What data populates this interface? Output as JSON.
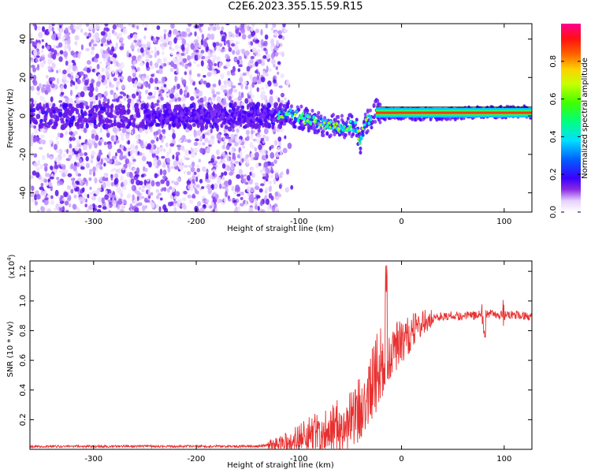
{
  "title": "C2E6.2023.355.15.59.R15",
  "chart_data": [
    {
      "type": "heatmap",
      "xlabel": "Height of straight line (km)",
      "ylabel": "Frequency (Hz)",
      "xlim": [
        -362,
        127
      ],
      "ylim": [
        -50,
        48
      ],
      "xticks": [
        -300,
        -200,
        -100,
        0,
        100
      ],
      "yticks": [
        -40,
        -20,
        0,
        20,
        40
      ],
      "xtick_labels": [
        "-300",
        "-200",
        "-100",
        "0",
        "100"
      ],
      "ytick_labels": [
        "-40",
        "-20",
        "0",
        "20",
        "40"
      ],
      "colorbar": {
        "label": "Normalized spectral amplitude",
        "range": [
          0.0,
          1.0
        ],
        "ticks": [
          0.0,
          0.2,
          0.4,
          0.6,
          0.8
        ],
        "tick_labels": [
          "0.0",
          "0.2",
          "0.4",
          "0.6",
          "0.8"
        ]
      },
      "features": {
        "noise_region_x": [
          -362,
          -120
        ],
        "trace_x": [
          -250,
          127
        ],
        "trace_center_hz": [
          [
            -250,
            0
          ],
          [
            -150,
            0
          ],
          [
            -110,
            1
          ],
          [
            -90,
            -2
          ],
          [
            -80,
            -4
          ],
          [
            -60,
            -6
          ],
          [
            -45,
            -5
          ],
          [
            -40,
            -14
          ],
          [
            -35,
            -3
          ],
          [
            -30,
            -2
          ],
          [
            -25,
            3
          ],
          [
            -20,
            1
          ],
          [
            0,
            1
          ],
          [
            50,
            1
          ],
          [
            80,
            2
          ],
          [
            127,
            2
          ]
        ]
      }
    },
    {
      "type": "line",
      "xlabel": "Height of straight line (km)",
      "ylabel": "SNR (10 * v/v)",
      "y_multiplier_label": "(x10",
      "y_multiplier_exp": "4",
      "xlim": [
        -362,
        127
      ],
      "ylim": [
        0,
        1.27
      ],
      "xticks": [
        -300,
        -200,
        -100,
        0,
        100
      ],
      "yticks": [
        0.2,
        0.4,
        0.6,
        0.8,
        1.0,
        1.2
      ],
      "xtick_labels": [
        "-300",
        "-200",
        "-100",
        "0",
        "100"
      ],
      "ytick_labels": [
        "0.2",
        "0.4",
        "0.6",
        "0.8",
        "1.0",
        "1.2"
      ],
      "color": "#e83030",
      "series": [
        {
          "x": [
            -362,
            -340,
            -320,
            -300,
            -280,
            -260,
            -240,
            -220,
            -200,
            -180,
            -160,
            -140,
            -130,
            -120,
            -110,
            -100,
            -90,
            -80,
            -70,
            -60,
            -50,
            -40,
            -35,
            -30,
            -25,
            -20,
            -16,
            -12,
            -5,
            0,
            5,
            10,
            15,
            20,
            25,
            30,
            40,
            50,
            60,
            70,
            80,
            90,
            100,
            110,
            120,
            127
          ],
          "y": [
            0.02,
            0.02,
            0.02,
            0.02,
            0.02,
            0.02,
            0.02,
            0.02,
            0.02,
            0.02,
            0.02,
            0.02,
            0.03,
            0.03,
            0.05,
            0.07,
            0.1,
            0.12,
            0.13,
            0.16,
            0.2,
            0.28,
            0.38,
            0.45,
            0.5,
            0.55,
            0.6,
            0.65,
            0.7,
            0.72,
            0.75,
            0.8,
            0.82,
            0.85,
            0.87,
            0.88,
            0.9,
            0.9,
            0.9,
            0.9,
            0.92,
            0.91,
            0.9,
            0.91,
            0.9,
            0.9
          ]
        }
      ]
    }
  ]
}
